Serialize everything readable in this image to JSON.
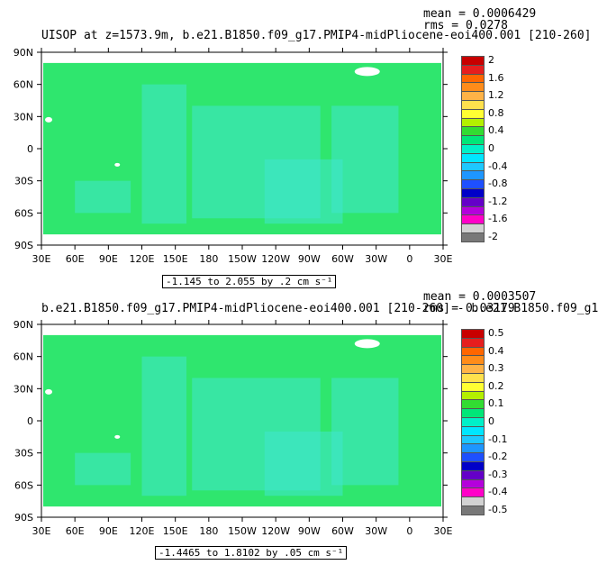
{
  "panels": [
    {
      "title": "UISOP at z=1573.9m, b.e21.B1850.f09_g17.PMIP4-midPliocene-eoi400.001 [210-260]",
      "mean_label": "mean = 0.0006429",
      "rms_label": "rms = 0.0278",
      "range_label": "-1.145 to 2.055 by .2 cm s⁻¹",
      "colorbar": {
        "labels": [
          "2",
          "1.6",
          "1.2",
          "0.8",
          "0.4",
          "0",
          "-0.4",
          "-0.8",
          "-1.2",
          "-1.6",
          "-2"
        ],
        "colors": [
          "#c80000",
          "#e61e1e",
          "#ff6600",
          "#ff8c1a",
          "#ffb347",
          "#ffe14d",
          "#ffff33",
          "#b4f000",
          "#32dc32",
          "#00e678",
          "#00f0c8",
          "#00e6ff",
          "#1ec8ff",
          "#1e96ff",
          "#1e50ff",
          "#0000c8",
          "#6400c8",
          "#b400dc",
          "#ff00c8",
          "#d2d2d2",
          "#787878"
        ]
      }
    },
    {
      "title": "b.e21.B1850.f09_g17.PMIP4-midPliocene-eoi400.001 [210-260] - b.e21.B1850.f09_g1",
      "mean_label": "mean = 0.0003507",
      "rms_label": "rms = 0.03179",
      "range_label": "-1.4465 to 1.8102 by .05 cm s⁻¹",
      "colorbar": {
        "labels": [
          "0.5",
          "0.4",
          "0.3",
          "0.2",
          "0.1",
          "0",
          "-0.1",
          "-0.2",
          "-0.3",
          "-0.4",
          "-0.5"
        ],
        "colors": [
          "#c80000",
          "#e61e1e",
          "#ff6600",
          "#ff8c1a",
          "#ffb347",
          "#ffe14d",
          "#ffff33",
          "#b4f000",
          "#32dc32",
          "#00e678",
          "#00f0c8",
          "#00e6ff",
          "#1ec8ff",
          "#1e96ff",
          "#1e50ff",
          "#0000c8",
          "#6400c8",
          "#b400dc",
          "#ff00c8",
          "#d2d2d2",
          "#787878"
        ]
      }
    }
  ],
  "axes": {
    "x_ticks": [
      "30E",
      "60E",
      "90E",
      "120E",
      "150E",
      "180",
      "150W",
      "120W",
      "90W",
      "60W",
      "30W",
      "0",
      "30E"
    ],
    "y_ticks": [
      "90N",
      "60N",
      "30N",
      "0",
      "30S",
      "60S",
      "90S"
    ]
  },
  "map_colors": {
    "land": "#ffffff",
    "ocean_base": "#2fe66e",
    "ocean_alt": "#3fe6d0"
  }
}
